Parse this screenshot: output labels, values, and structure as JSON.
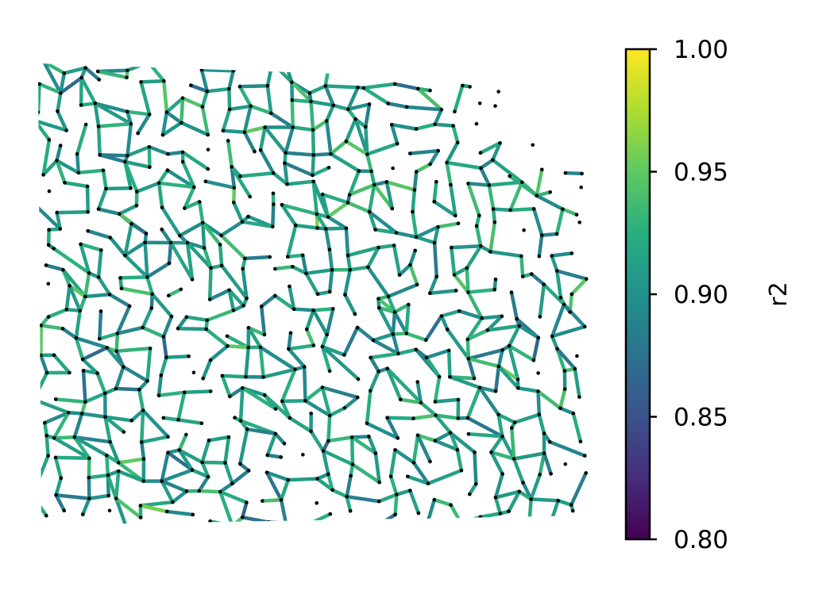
{
  "chart_data": {
    "type": "network",
    "title": "",
    "colorbar": {
      "label": "r2",
      "range": [
        0.8,
        1.0
      ],
      "ticks": [
        0.8,
        0.85,
        0.9,
        0.95,
        1.0
      ],
      "tick_labels": [
        "0.80",
        "0.85",
        "0.90",
        "0.95",
        "1.00"
      ],
      "colormap": "viridis"
    },
    "node_color": "#000000",
    "edge_value_distribution": {
      "typical": 0.91,
      "spread": 0.03,
      "min_seen": 0.83,
      "max_seen": 0.99
    },
    "axes_visible": false
  }
}
